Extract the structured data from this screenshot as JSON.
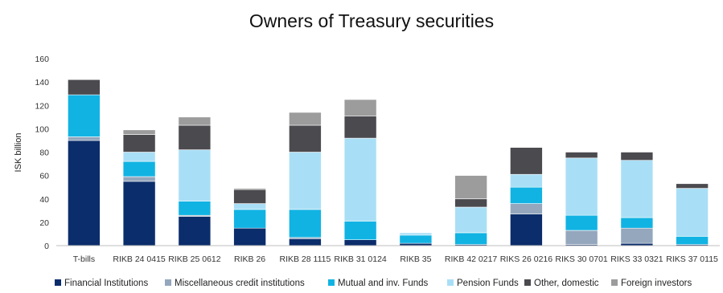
{
  "chart_data": {
    "type": "bar",
    "stacked": true,
    "title": "Owners of Treasury securities",
    "xlabel": "",
    "ylabel": "ISK billion",
    "ylim": [
      0,
      160
    ],
    "yticks": [
      0,
      20,
      40,
      60,
      80,
      100,
      120,
      140,
      160
    ],
    "grid": false,
    "legend_position": "bottom",
    "categories": [
      "T-bills",
      "RIKB 24 0415",
      "RIKB 25 0612",
      "RIKB 26",
      "RIKB 28 1115",
      "RIKB 31 0124",
      "RIKB 35",
      "RIKB 42 0217",
      "RIKS 26 0216",
      "RIKS 30 0701",
      "RIKS 33 0321",
      "RIKS 37 0115"
    ],
    "series": [
      {
        "name": "Financial Institutions",
        "color": "#0b2d6b",
        "values": [
          90,
          55,
          25,
          15,
          6,
          5,
          2,
          1,
          27,
          1,
          2,
          1
        ]
      },
      {
        "name": "Miscellaneous credit institutions",
        "color": "#94a7bd",
        "values": [
          3,
          4,
          1,
          0,
          1,
          0,
          0,
          0,
          9,
          12,
          13,
          0
        ]
      },
      {
        "name": "Mutual and inv. Funds",
        "color": "#11b3e3",
        "values": [
          36,
          13,
          12,
          16,
          24,
          16,
          7,
          10,
          14,
          13,
          9,
          7
        ]
      },
      {
        "name": "Pension Funds",
        "color": "#a9dff6",
        "values": [
          0,
          8,
          44,
          5,
          49,
          71,
          2,
          22,
          11,
          49,
          49,
          41
        ]
      },
      {
        "name": "Other, domestic",
        "color": "#4a4a4f",
        "values": [
          13,
          15,
          21,
          12,
          23,
          19,
          0,
          7,
          23,
          5,
          7,
          4
        ]
      },
      {
        "name": "Foreign investors",
        "color": "#9c9c9c",
        "values": [
          0,
          4,
          7,
          1,
          11,
          14,
          0,
          20,
          0,
          0,
          0,
          0
        ]
      }
    ]
  }
}
